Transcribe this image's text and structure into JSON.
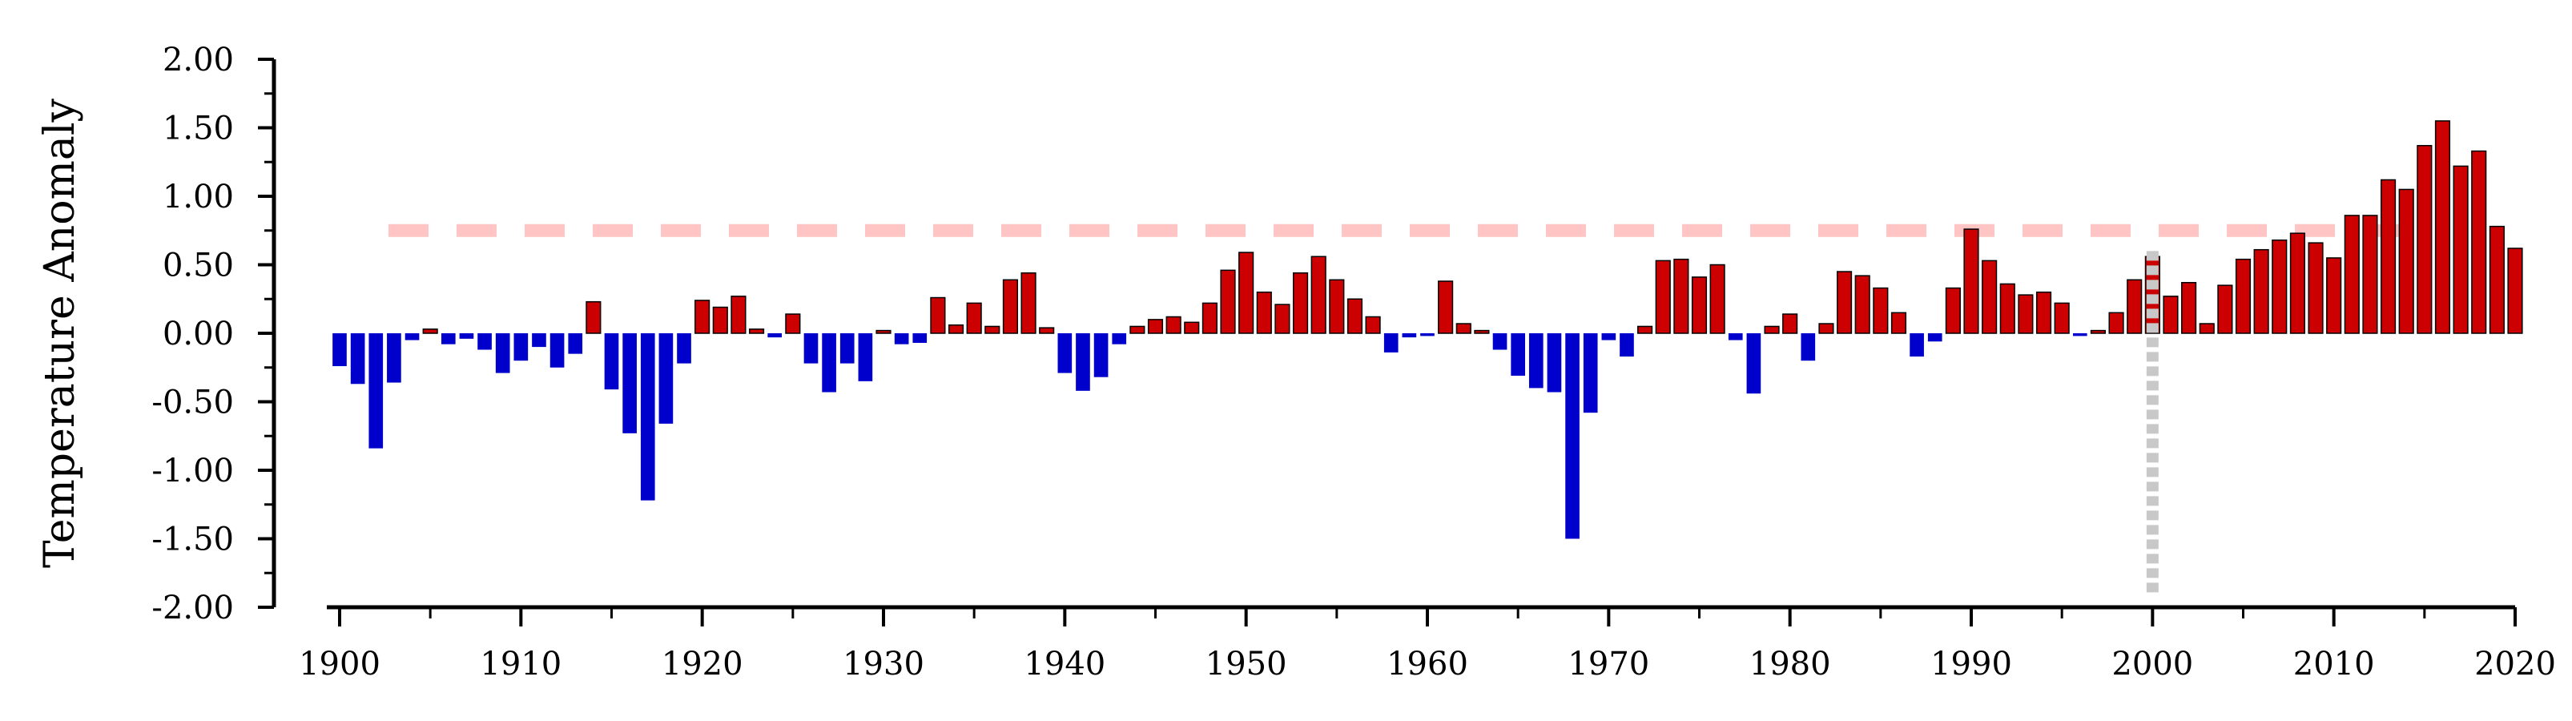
{
  "chart_data": {
    "type": "bar",
    "ylabel": "Temperature Anomaly",
    "xlabel": "",
    "ylim": [
      -2.0,
      2.0
    ],
    "xlim": [
      1899.5,
      2020.5
    ],
    "y_ticks": [
      "2.00",
      "1.50",
      "1.00",
      "0.50",
      "0.00",
      "-0.50",
      "-1.00",
      "-1.50",
      "-2.00"
    ],
    "y_tick_values": [
      2.0,
      1.5,
      1.0,
      0.5,
      0.0,
      -0.5,
      -1.0,
      -1.5,
      -2.0
    ],
    "x_ticks": [
      "1900",
      "1910",
      "1920",
      "1930",
      "1940",
      "1950",
      "1960",
      "1970",
      "1980",
      "1990",
      "2000",
      "2010",
      "2020"
    ],
    "x_tick_values": [
      1900,
      1910,
      1920,
      1930,
      1940,
      1950,
      1960,
      1970,
      1980,
      1990,
      2000,
      2010,
      2020
    ],
    "colors": {
      "positive": "#cc0000",
      "negative": "#0000cc",
      "bar_outline": "#000000",
      "reference_line": "#ffc4c4",
      "marker_line": "#c8c8c8"
    },
    "reference_line": {
      "y": 0.75,
      "style": "dashed"
    },
    "marker_line": {
      "x": 2000,
      "y_top": 0.6,
      "style": "dotted"
    },
    "grid": false,
    "years": [
      1900,
      1901,
      1902,
      1903,
      1904,
      1905,
      1906,
      1907,
      1908,
      1909,
      1910,
      1911,
      1912,
      1913,
      1914,
      1915,
      1916,
      1917,
      1918,
      1919,
      1920,
      1921,
      1922,
      1923,
      1924,
      1925,
      1926,
      1927,
      1928,
      1929,
      1930,
      1931,
      1932,
      1933,
      1934,
      1935,
      1936,
      1937,
      1938,
      1939,
      1940,
      1941,
      1942,
      1943,
      1944,
      1945,
      1946,
      1947,
      1948,
      1949,
      1950,
      1951,
      1952,
      1953,
      1954,
      1955,
      1956,
      1957,
      1958,
      1959,
      1960,
      1961,
      1962,
      1963,
      1964,
      1965,
      1966,
      1967,
      1968,
      1969,
      1970,
      1971,
      1972,
      1973,
      1974,
      1975,
      1976,
      1977,
      1978,
      1979,
      1980,
      1981,
      1982,
      1983,
      1984,
      1985,
      1986,
      1987,
      1988,
      1989,
      1990,
      1991,
      1992,
      1993,
      1994,
      1995,
      1996,
      1997,
      1998,
      1999,
      2000,
      2001,
      2002,
      2003,
      2004,
      2005,
      2006,
      2007,
      2008,
      2009,
      2010,
      2011,
      2012,
      2013,
      2014,
      2015,
      2016,
      2017,
      2018,
      2019,
      2020
    ],
    "values": [
      -0.24,
      -0.37,
      -0.84,
      -0.36,
      -0.05,
      0.03,
      -0.08,
      -0.04,
      -0.12,
      -0.29,
      -0.2,
      -0.1,
      -0.25,
      -0.15,
      0.23,
      -0.41,
      -0.73,
      -1.22,
      -0.66,
      -0.22,
      0.24,
      0.19,
      0.27,
      0.03,
      -0.03,
      0.14,
      -0.22,
      -0.43,
      -0.22,
      -0.35,
      0.02,
      -0.08,
      -0.07,
      0.26,
      0.06,
      0.22,
      0.05,
      0.39,
      0.44,
      0.04,
      -0.29,
      -0.42,
      -0.32,
      -0.08,
      0.05,
      0.1,
      0.12,
      0.08,
      0.22,
      0.46,
      0.59,
      0.3,
      0.21,
      0.44,
      0.56,
      0.39,
      0.25,
      0.12,
      -0.14,
      -0.03,
      -0.02,
      0.38,
      0.07,
      0.02,
      -0.12,
      -0.31,
      -0.4,
      -0.43,
      -1.5,
      -0.58,
      -0.05,
      -0.17,
      0.05,
      0.53,
      0.54,
      0.41,
      0.5,
      -0.05,
      -0.44,
      0.05,
      0.14,
      -0.2,
      0.07,
      0.45,
      0.42,
      0.33,
      0.15,
      -0.17,
      -0.06,
      0.33,
      0.76,
      0.53,
      0.36,
      0.28,
      0.3,
      0.22,
      -0.02,
      0.02,
      0.15,
      0.39,
      0.56,
      0.27,
      0.37,
      0.07,
      0.35,
      0.54,
      0.61,
      0.68,
      0.73,
      0.66,
      0.55,
      0.86,
      0.86,
      1.12,
      1.05,
      1.37,
      1.55,
      1.22,
      1.33,
      0.78,
      0.62
    ]
  }
}
